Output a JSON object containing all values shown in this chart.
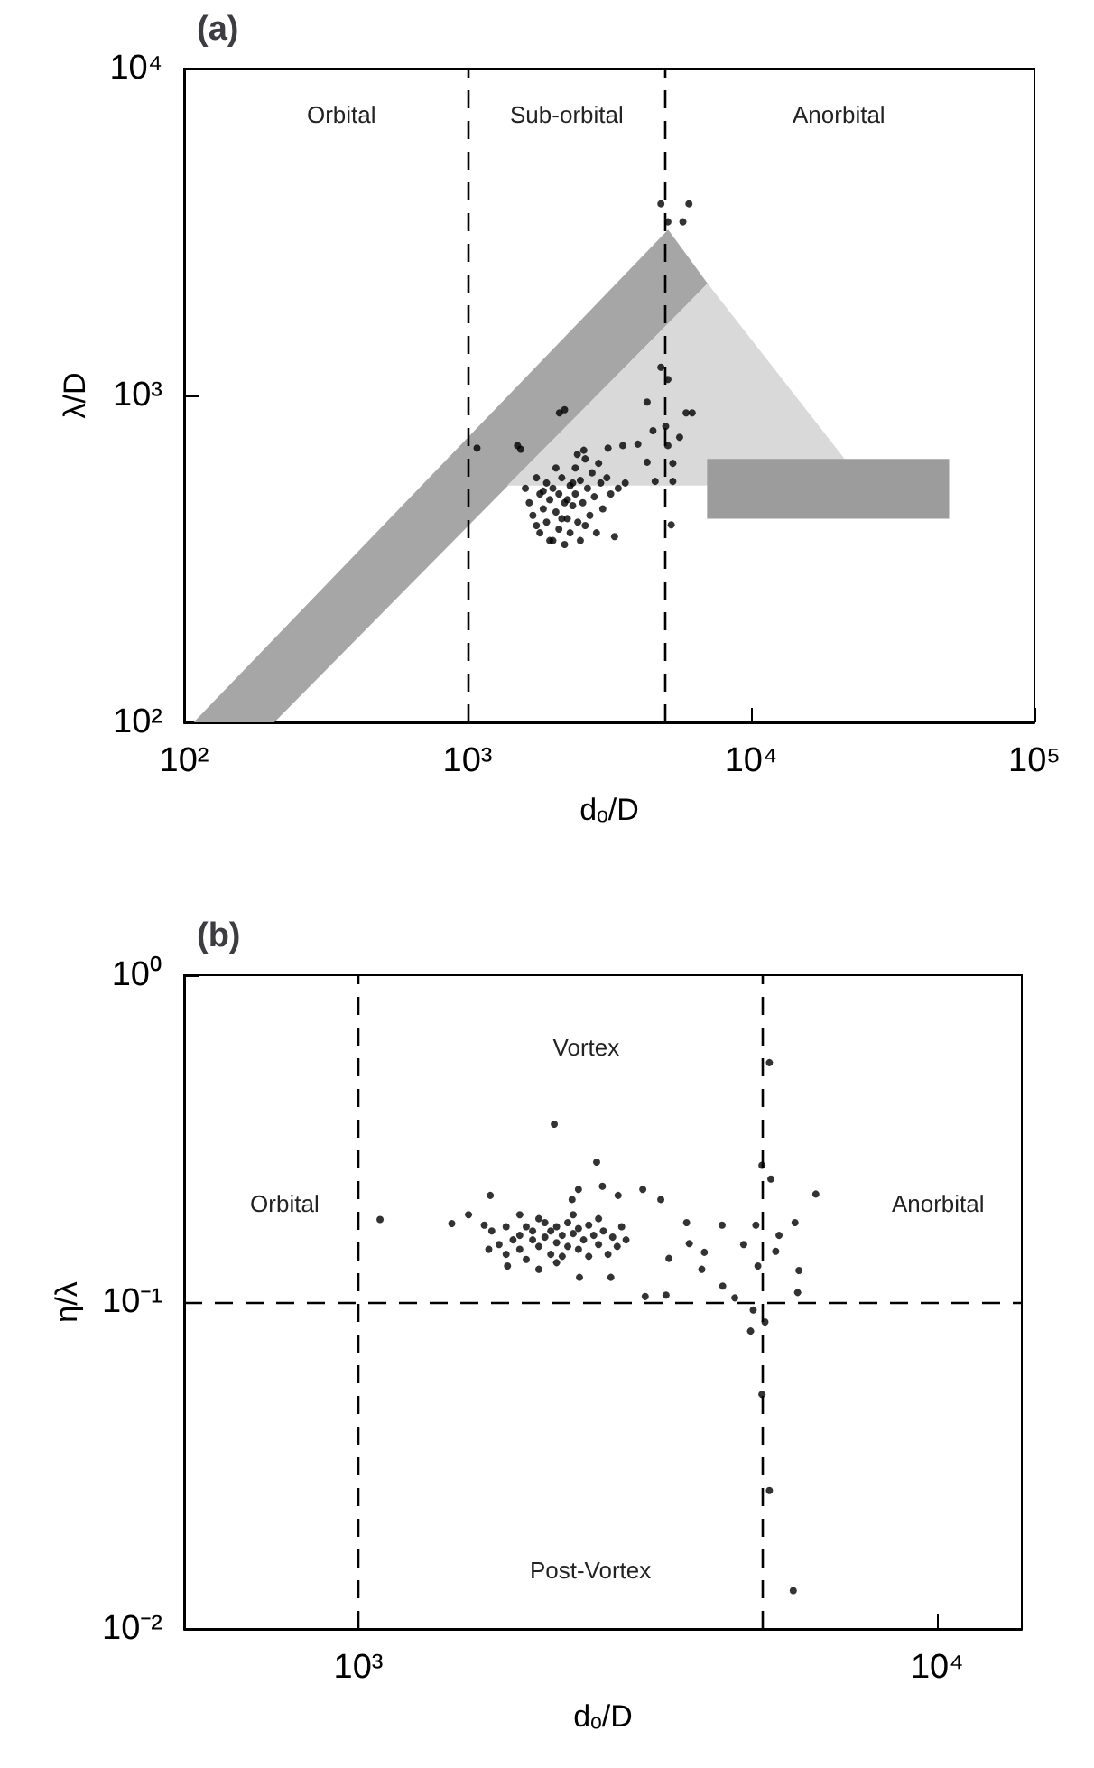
{
  "chart_data": [
    {
      "type": "scatter",
      "title": "(a)",
      "xlabel": "dₒ/D",
      "ylabel": "λ/D",
      "log": "xy",
      "xlim": [
        100,
        100000
      ],
      "ylim": [
        100,
        10000
      ],
      "xticks": [
        {
          "value": 100,
          "label": "10²"
        },
        {
          "value": 1000,
          "label": "10³"
        },
        {
          "value": 10000,
          "label": "10⁴"
        },
        {
          "value": 100000,
          "label": "10⁵"
        }
      ],
      "yticks": [
        {
          "value": 100,
          "label": "10²"
        },
        {
          "value": 1000,
          "label": "10³"
        },
        {
          "value": 10000,
          "label": "10⁴"
        }
      ],
      "ref_lines": [
        {
          "axis": "x",
          "value": 1000,
          "line_style": "dashed",
          "color": "#000000"
        },
        {
          "axis": "x",
          "value": 5000,
          "line_style": "dashed",
          "color": "#000000"
        }
      ],
      "annotations": [
        "Orbital",
        "Sub-orbital",
        "Anorbital"
      ],
      "series": [
        {
          "type": "area",
          "color": "#a6a6a6",
          "x": [
            108,
            5100,
            7030,
            208
          ],
          "values": [
            100,
            3220,
            2200,
            100
          ]
        },
        {
          "type": "area",
          "color": "#d9d9d9",
          "x": [
            1380,
            7030,
            21400,
            6900
          ],
          "values": [
            530,
            2200,
            640,
            530
          ]
        },
        {
          "type": "area",
          "color": "#9c9c9c",
          "x": [
            7000,
            50000,
            50000,
            7000
          ],
          "values": [
            640,
            640,
            420,
            420
          ]
        },
        {
          "color": "#000000",
          "marker": "circle",
          "x": [
            4810,
            6040,
            5090,
            5750,
            4810,
            5090,
            4300,
            5900,
            6200,
            2110,
            2200,
            1080,
            1500,
            1540,
            4510,
            5000,
            5090,
            5600,
            3990,
            4300,
            5300,
            4590,
            5300,
            5230,
            3530,
            3130,
            2570,
            2440,
            1600,
            1650,
            1700,
            1750,
            1800,
            1800,
            1850,
            1900,
            1900,
            1950,
            2000,
            2000,
            2050,
            2100,
            2100,
            2150,
            2200,
            2200,
            2250,
            2300,
            2300,
            2350,
            2400,
            2400,
            2450,
            2500,
            2500,
            2550,
            2600,
            2650,
            2700,
            2750,
            2800,
            2850,
            2900,
            2950,
            3000,
            3100,
            3200,
            3300,
            3400,
            3600,
            1750,
            1950,
            2150,
            2350,
            2050,
            2600,
            2250,
            1850
          ],
          "values": [
            3860,
            3860,
            3400,
            3400,
            1220,
            1120,
            955,
            885,
            885,
            885,
            905,
            690,
            703,
            685,
            780,
            805,
            703,
            745,
            710,
            625,
            620,
            546,
            546,
            402,
            703,
            690,
            680,
            660,
            520,
            470,
            430,
            560,
            500,
            380,
            450,
            540,
            410,
            480,
            520,
            360,
            440,
            500,
            390,
            560,
            470,
            350,
            420,
            530,
            380,
            460,
            600,
            500,
            410,
            360,
            550,
            470,
            640,
            520,
            430,
            580,
            490,
            380,
            620,
            540,
            450,
            560,
            500,
            370,
            520,
            540,
            400,
            360,
            420,
            540,
            600,
            400,
            480,
            510
          ]
        }
      ]
    },
    {
      "type": "scatter",
      "title": "(b)",
      "xlabel": "dₒ/D",
      "ylabel": "η/λ",
      "log": "xy",
      "marker": "circle",
      "xlim": [
        500,
        14000
      ],
      "ylim": [
        0.01,
        1
      ],
      "xticks": [
        {
          "value": 1000,
          "label": "10³"
        },
        {
          "value": 10000,
          "label": "10⁴"
        }
      ],
      "yticks": [
        {
          "value": 0.01,
          "label": "10⁻²"
        },
        {
          "value": 0.1,
          "label": "10⁻¹"
        },
        {
          "value": 1,
          "label": "10⁰"
        }
      ],
      "ref_lines": [
        {
          "axis": "x",
          "value": 1000,
          "line_style": "dashed",
          "color": "#000000"
        },
        {
          "axis": "x",
          "value": 5000,
          "line_style": "dashed",
          "color": "#000000"
        },
        {
          "axis": "y",
          "value": 0.1,
          "line_style": "dashed",
          "color": "#000000"
        }
      ],
      "annotations": [
        "Vortex",
        "Orbital",
        "Anorbital",
        "Post-Vortex"
      ],
      "series": [
        {
          "color": "#000000",
          "x": [
            1090,
            2180,
            5130,
            4980,
            5160,
            6170,
            4980,
            5130,
            5640,
            4810,
            4760,
            5040,
            5740,
            5770,
            5680,
            5330,
            5260,
            4900,
            4860,
            4630,
            4470,
            4260,
            4250,
            3920,
            3960,
            3690,
            3730,
            3400,
            3130,
            3440,
            3330,
            3100,
            2810,
            2640,
            2580,
            2400,
            2340,
            2410,
            2730,
            1690,
            1550,
            1450,
            1810,
            2050,
            1700,
            1750,
            1800,
            1800,
            1850,
            1900,
            1900,
            1950,
            1950,
            2000,
            2000,
            2050,
            2100,
            2100,
            2150,
            2150,
            2200,
            2200,
            2250,
            2250,
            2300,
            2300,
            2350,
            2400,
            2400,
            2450,
            2500,
            2500,
            2550,
            2600,
            2650,
            2700,
            2750,
            2800,
            2850,
            2900,
            1650,
            1680,
            2050,
            2350,
            2600,
            2200,
            1900
          ],
          "values": [
            0.179,
            0.35,
            0.54,
            0.262,
            0.238,
            0.214,
            0.0522,
            0.0265,
            0.0131,
            0.0946,
            0.0815,
            0.0869,
            0.107,
            0.125,
            0.175,
            0.16,
            0.143,
            0.129,
            0.172,
            0.15,
            0.103,
            0.112,
            0.172,
            0.126,
            0.142,
            0.175,
            0.151,
            0.105,
            0.104,
            0.136,
            0.206,
            0.221,
            0.212,
            0.226,
            0.268,
            0.221,
            0.206,
            0.119,
            0.119,
            0.212,
            0.185,
            0.174,
            0.129,
            0.126,
            0.165,
            0.15,
            0.14,
            0.17,
            0.155,
            0.16,
            0.145,
            0.17,
            0.135,
            0.155,
            0.165,
            0.148,
            0.175,
            0.158,
            0.14,
            0.165,
            0.152,
            0.17,
            0.16,
            0.138,
            0.148,
            0.175,
            0.162,
            0.145,
            0.168,
            0.155,
            0.138,
            0.172,
            0.16,
            0.15,
            0.165,
            0.14,
            0.158,
            0.148,
            0.17,
            0.155,
            0.172,
            0.145,
            0.18,
            0.185,
            0.18,
            0.132,
            0.185
          ]
        }
      ]
    }
  ]
}
